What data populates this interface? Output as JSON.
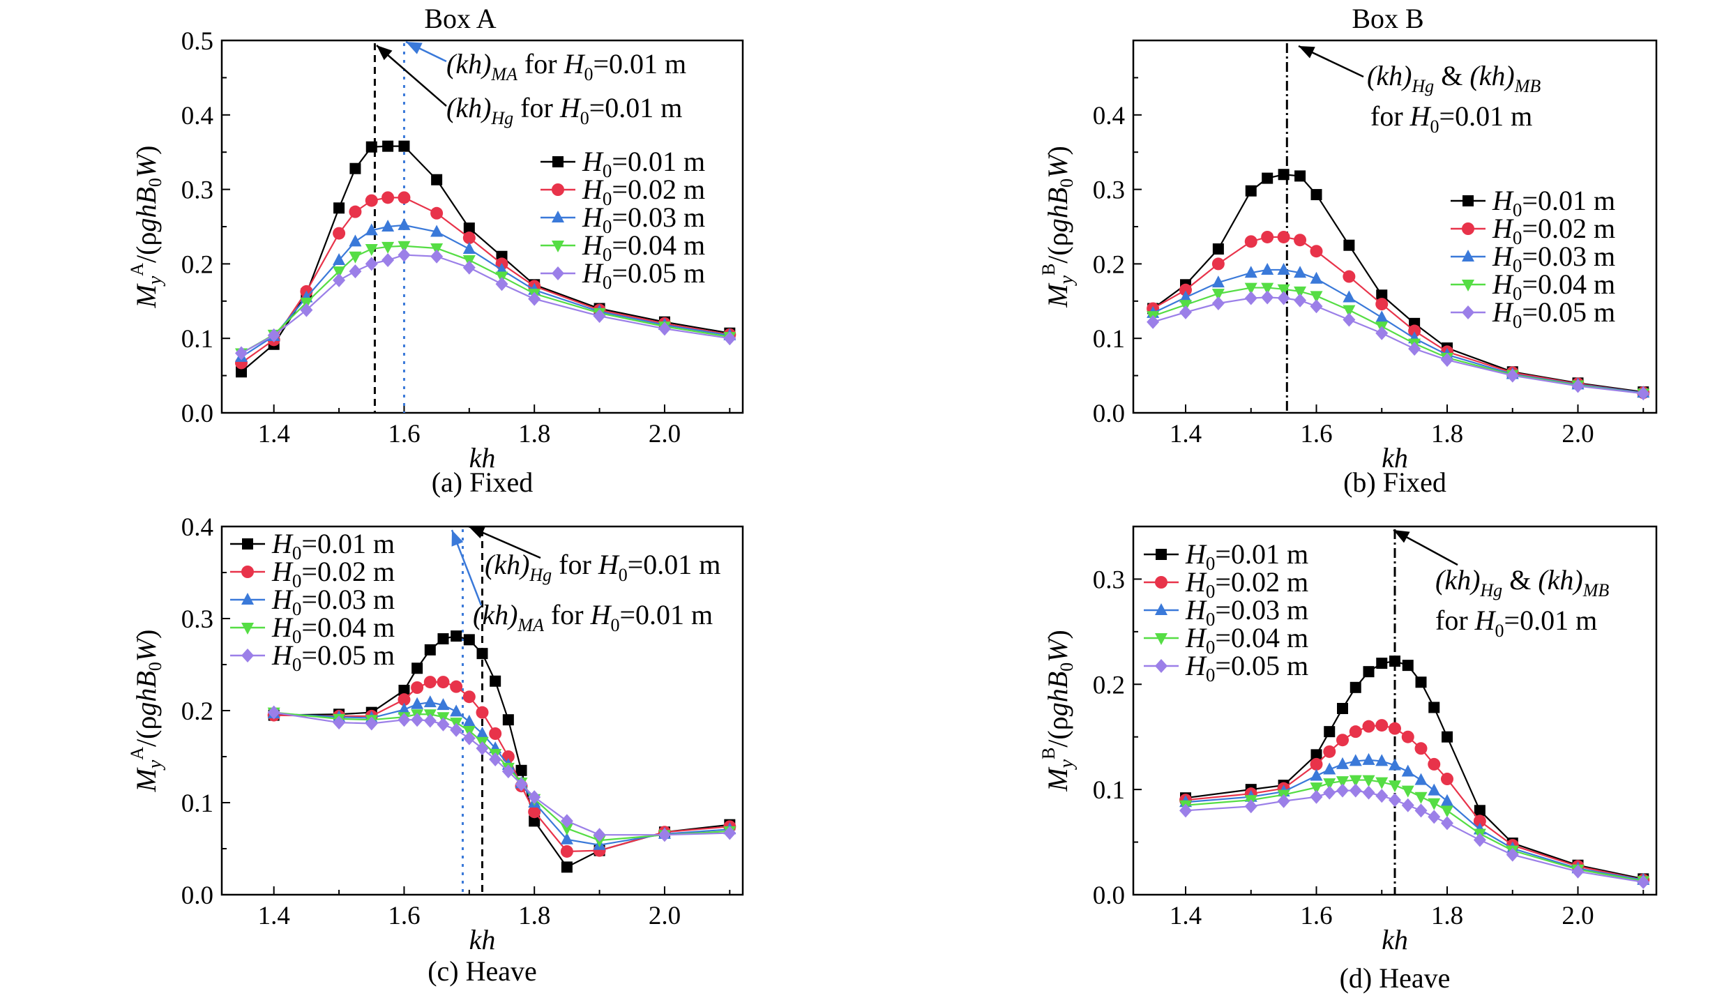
{
  "figure": {
    "box_a_title": "Box A",
    "box_b_title": "Box B"
  },
  "chart_data": [
    {
      "type": "line",
      "panel": "a",
      "title": "Box A",
      "caption": "(a) Fixed",
      "xlabel": "kh",
      "ylabel": "My^A/(ρghB0W)",
      "xlim": [
        1.32,
        2.12
      ],
      "ylim": [
        0,
        0.5
      ],
      "xticks": [
        "1.4",
        "1.6",
        "1.8",
        "2.0"
      ],
      "yticks": [
        "0.0",
        "0.1",
        "0.2",
        "0.3",
        "0.4",
        "0.5"
      ],
      "x": [
        1.35,
        1.4,
        1.45,
        1.5,
        1.525,
        1.55,
        1.575,
        1.6,
        1.65,
        1.7,
        1.75,
        1.8,
        1.9,
        2.0,
        2.1
      ],
      "series": [
        {
          "name": "H0=0.01 m",
          "color": "#000000",
          "marker": "square",
          "values": [
            0.055,
            0.092,
            0.16,
            0.275,
            0.328,
            0.357,
            0.358,
            0.358,
            0.313,
            0.248,
            0.21,
            0.172,
            0.14,
            0.122,
            0.107
          ]
        },
        {
          "name": "H0=0.02 m",
          "color": "#e8334a",
          "marker": "circle",
          "values": [
            0.067,
            0.098,
            0.163,
            0.241,
            0.27,
            0.285,
            0.289,
            0.289,
            0.268,
            0.235,
            0.2,
            0.17,
            0.138,
            0.12,
            0.105
          ]
        },
        {
          "name": "H0=0.03 m",
          "color": "#3a79d9",
          "marker": "triangle-up",
          "values": [
            0.075,
            0.103,
            0.155,
            0.205,
            0.23,
            0.245,
            0.25,
            0.252,
            0.243,
            0.22,
            0.192,
            0.165,
            0.136,
            0.118,
            0.104
          ]
        },
        {
          "name": "H0=0.04 m",
          "color": "#55dd44",
          "marker": "triangle-down",
          "values": [
            0.08,
            0.105,
            0.148,
            0.19,
            0.21,
            0.22,
            0.223,
            0.224,
            0.221,
            0.205,
            0.183,
            0.16,
            0.134,
            0.116,
            0.102
          ]
        },
        {
          "name": "H0=0.05 m",
          "color": "#9b7fe8",
          "marker": "diamond",
          "values": [
            0.08,
            0.104,
            0.138,
            0.178,
            0.19,
            0.2,
            0.205,
            0.212,
            0.21,
            0.195,
            0.173,
            0.153,
            0.13,
            0.113,
            0.1
          ]
        }
      ],
      "annotations": [
        {
          "label_main": "(kh)",
          "label_sub": "MA",
          "label_tail": " for H0=0.01 m",
          "x": 1.6,
          "color": "#3a79d9",
          "style": "dotted"
        },
        {
          "label_main": "(kh)",
          "label_sub": "Hg",
          "label_tail": " for H0=0.01 m",
          "x": 1.555,
          "color": "#000000",
          "style": "dashed"
        }
      ],
      "legend_position": "right"
    },
    {
      "type": "line",
      "panel": "b",
      "title": "Box B",
      "caption": "(b) Fixed",
      "xlabel": "kh",
      "ylabel": "My^B/(ρghB0W)",
      "xlim": [
        1.32,
        2.12
      ],
      "ylim": [
        0,
        0.5
      ],
      "xticks": [
        "1.4",
        "1.6",
        "1.8",
        "2.0"
      ],
      "yticks": [
        "0.0",
        "0.1",
        "0.2",
        "0.3",
        "0.4"
      ],
      "x": [
        1.35,
        1.4,
        1.45,
        1.5,
        1.525,
        1.55,
        1.575,
        1.6,
        1.65,
        1.7,
        1.75,
        1.8,
        1.9,
        2.0,
        2.1
      ],
      "series": [
        {
          "name": "H0=0.01 m",
          "color": "#000000",
          "marker": "square",
          "values": [
            0.14,
            0.172,
            0.22,
            0.298,
            0.315,
            0.32,
            0.318,
            0.293,
            0.225,
            0.158,
            0.12,
            0.087,
            0.055,
            0.04,
            0.028
          ]
        },
        {
          "name": "H0=0.02 m",
          "color": "#e8334a",
          "marker": "circle",
          "values": [
            0.14,
            0.165,
            0.2,
            0.23,
            0.236,
            0.236,
            0.232,
            0.217,
            0.183,
            0.146,
            0.11,
            0.082,
            0.054,
            0.039,
            0.027
          ]
        },
        {
          "name": "H0=0.03 m",
          "color": "#3a79d9",
          "marker": "triangle-up",
          "values": [
            0.134,
            0.155,
            0.175,
            0.188,
            0.192,
            0.192,
            0.188,
            0.18,
            0.155,
            0.128,
            0.1,
            0.078,
            0.052,
            0.038,
            0.027
          ]
        },
        {
          "name": "H0=0.04 m",
          "color": "#55dd44",
          "marker": "triangle-down",
          "values": [
            0.13,
            0.145,
            0.16,
            0.168,
            0.168,
            0.166,
            0.163,
            0.157,
            0.138,
            0.116,
            0.093,
            0.074,
            0.051,
            0.037,
            0.026
          ]
        },
        {
          "name": "H0=0.05 m",
          "color": "#9b7fe8",
          "marker": "diamond",
          "values": [
            0.122,
            0.135,
            0.147,
            0.154,
            0.155,
            0.154,
            0.151,
            0.143,
            0.125,
            0.107,
            0.086,
            0.071,
            0.05,
            0.036,
            0.026
          ]
        }
      ],
      "annotations": [
        {
          "label_main": "(kh)",
          "label_sub": "Hg",
          "label_mid": " & (kh)",
          "label_sub2": "MB",
          "label_line2": "for H0=0.01 m",
          "x": 1.555,
          "color": "#000000",
          "style": "dashdot"
        }
      ],
      "legend_position": "right"
    },
    {
      "type": "line",
      "panel": "c",
      "caption": "(c) Heave",
      "xlabel": "kh",
      "ylabel": "My^A/(ρghB0W)",
      "xlim": [
        1.32,
        2.12
      ],
      "ylim": [
        0,
        0.4
      ],
      "xticks": [
        "1.4",
        "1.6",
        "1.8",
        "2.0"
      ],
      "yticks": [
        "0.0",
        "0.1",
        "0.2",
        "0.3",
        "0.4"
      ],
      "x": [
        1.4,
        1.5,
        1.55,
        1.6,
        1.62,
        1.64,
        1.66,
        1.68,
        1.7,
        1.72,
        1.74,
        1.76,
        1.78,
        1.8,
        1.85,
        1.9,
        2.0,
        2.1
      ],
      "series": [
        {
          "name": "H0=0.01 m",
          "color": "#000000",
          "marker": "square",
          "values": [
            0.195,
            0.196,
            0.198,
            0.222,
            0.246,
            0.266,
            0.278,
            0.281,
            0.277,
            0.262,
            0.232,
            0.19,
            0.135,
            0.08,
            0.03,
            0.048,
            0.068,
            0.076
          ]
        },
        {
          "name": "H0=0.02 m",
          "color": "#e8334a",
          "marker": "circle",
          "values": [
            0.195,
            0.194,
            0.194,
            0.212,
            0.225,
            0.231,
            0.231,
            0.226,
            0.215,
            0.198,
            0.175,
            0.15,
            0.118,
            0.09,
            0.047,
            0.048,
            0.068,
            0.074
          ]
        },
        {
          "name": "H0=0.03 m",
          "color": "#3a79d9",
          "marker": "triangle-up",
          "values": [
            0.197,
            0.193,
            0.192,
            0.201,
            0.207,
            0.209,
            0.206,
            0.199,
            0.188,
            0.175,
            0.159,
            0.141,
            0.121,
            0.1,
            0.06,
            0.054,
            0.066,
            0.071
          ]
        },
        {
          "name": "H0=0.04 m",
          "color": "#55dd44",
          "marker": "triangle-down",
          "values": [
            0.198,
            0.191,
            0.19,
            0.193,
            0.196,
            0.196,
            0.193,
            0.187,
            0.178,
            0.166,
            0.153,
            0.138,
            0.122,
            0.104,
            0.072,
            0.059,
            0.065,
            0.069
          ]
        },
        {
          "name": "H0=0.05 m",
          "color": "#9b7fe8",
          "marker": "diamond",
          "values": [
            0.198,
            0.187,
            0.186,
            0.19,
            0.19,
            0.189,
            0.185,
            0.179,
            0.17,
            0.159,
            0.147,
            0.134,
            0.12,
            0.106,
            0.08,
            0.065,
            0.065,
            0.067
          ]
        }
      ],
      "annotations": [
        {
          "label_main": "(kh)",
          "label_sub": "Hg",
          "label_tail": " for H0=0.01 m",
          "x": 1.72,
          "color": "#000000",
          "style": "dashed"
        },
        {
          "label_main": "(kh)",
          "label_sub": "MA",
          "label_tail": " for H0=0.01 m",
          "x": 1.69,
          "color": "#3a79d9",
          "style": "dotted"
        }
      ],
      "legend_position": "top-left"
    },
    {
      "type": "line",
      "panel": "d",
      "caption": "(d) Heave",
      "xlabel": "kh",
      "ylabel": "My^B/(ρghB0W)",
      "xlim": [
        1.32,
        2.12
      ],
      "ylim": [
        0,
        0.35
      ],
      "xticks": [
        "1.4",
        "1.6",
        "1.8",
        "2.0"
      ],
      "yticks": [
        "0.0",
        "0.1",
        "0.2",
        "0.3"
      ],
      "x": [
        1.4,
        1.5,
        1.55,
        1.6,
        1.62,
        1.64,
        1.66,
        1.68,
        1.7,
        1.72,
        1.74,
        1.76,
        1.78,
        1.8,
        1.85,
        1.9,
        2.0,
        2.1
      ],
      "series": [
        {
          "name": "H0=0.01 m",
          "color": "#000000",
          "marker": "square",
          "values": [
            0.092,
            0.1,
            0.104,
            0.133,
            0.155,
            0.177,
            0.197,
            0.212,
            0.22,
            0.222,
            0.218,
            0.202,
            0.178,
            0.15,
            0.08,
            0.049,
            0.028,
            0.015
          ]
        },
        {
          "name": "H0=0.02 m",
          "color": "#e8334a",
          "marker": "circle",
          "values": [
            0.09,
            0.096,
            0.101,
            0.124,
            0.136,
            0.147,
            0.155,
            0.16,
            0.161,
            0.158,
            0.15,
            0.139,
            0.124,
            0.11,
            0.07,
            0.047,
            0.027,
            0.014
          ]
        },
        {
          "name": "H0=0.03 m",
          "color": "#3a79d9",
          "marker": "triangle-up",
          "values": [
            0.088,
            0.093,
            0.098,
            0.113,
            0.119,
            0.124,
            0.127,
            0.128,
            0.127,
            0.123,
            0.117,
            0.109,
            0.099,
            0.089,
            0.062,
            0.044,
            0.025,
            0.014
          ]
        },
        {
          "name": "H0=0.04 m",
          "color": "#55dd44",
          "marker": "triangle-down",
          "values": [
            0.085,
            0.09,
            0.095,
            0.102,
            0.106,
            0.108,
            0.109,
            0.109,
            0.107,
            0.104,
            0.099,
            0.093,
            0.087,
            0.08,
            0.058,
            0.042,
            0.024,
            0.013
          ]
        },
        {
          "name": "H0=0.05 m",
          "color": "#9b7fe8",
          "marker": "diamond",
          "values": [
            0.08,
            0.084,
            0.089,
            0.093,
            0.097,
            0.099,
            0.099,
            0.097,
            0.094,
            0.09,
            0.085,
            0.08,
            0.074,
            0.068,
            0.052,
            0.038,
            0.022,
            0.012
          ]
        }
      ],
      "annotations": [
        {
          "label_main": "(kh)",
          "label_sub": "Hg",
          "label_mid": " & (kh)",
          "label_sub2": "MB",
          "label_line2": "for H0=0.01 m",
          "x": 1.72,
          "color": "#000000",
          "style": "dashdot"
        }
      ],
      "legend_position": "top-left"
    }
  ]
}
